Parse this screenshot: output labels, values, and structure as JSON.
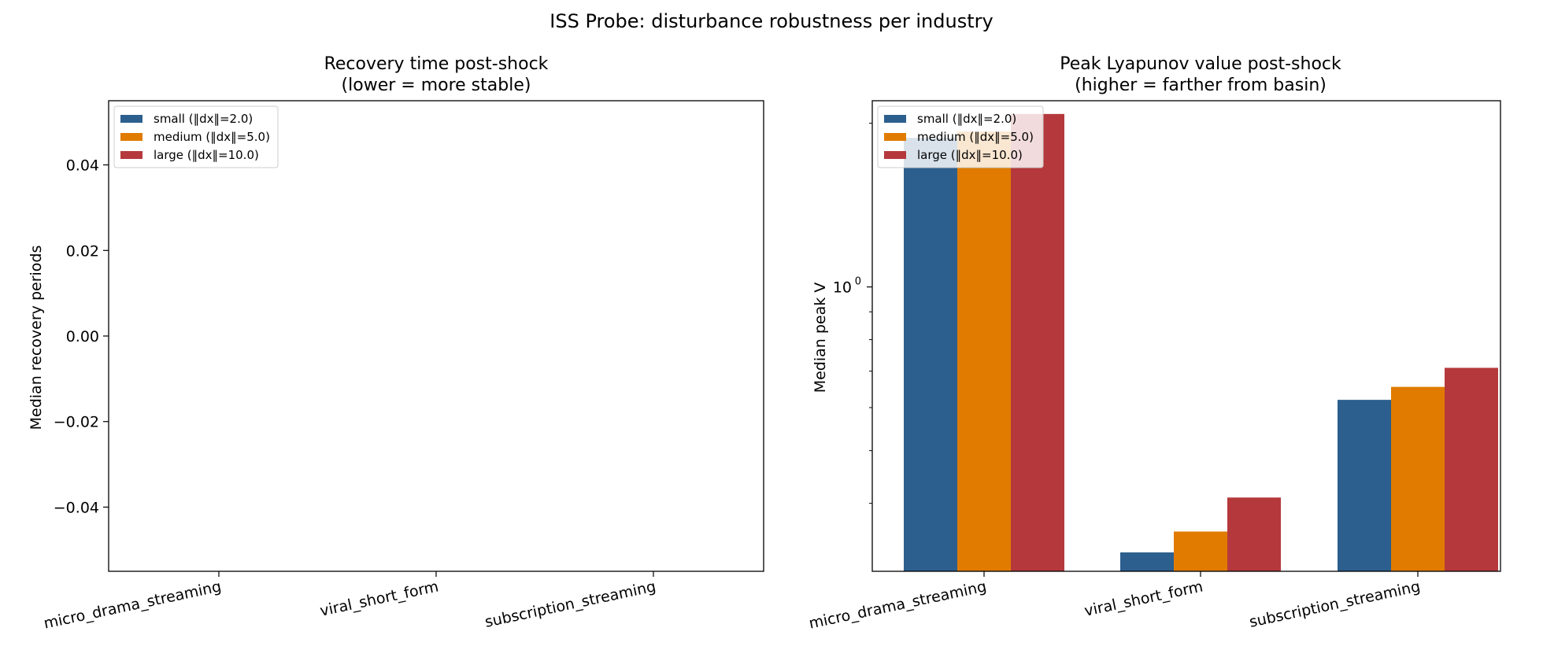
{
  "figure": {
    "title": "ISS Probe: disturbance robustness per industry"
  },
  "chart_data": [
    {
      "type": "bar",
      "title_line1": "Recovery time post-shock",
      "title_line2": "(lower = more stable)",
      "xlabel": "",
      "ylabel": "Median recovery periods",
      "categories": [
        "micro_drama_streaming",
        "viral_short_form",
        "subscription_streaming"
      ],
      "ylim": [
        -0.055,
        0.055
      ],
      "yscale": "linear",
      "yticks": [
        -0.04,
        -0.02,
        0.0,
        0.02,
        0.04
      ],
      "ytick_labels": [
        "−0.04",
        "−0.02",
        "0.00",
        "0.02",
        "0.04"
      ],
      "legend_position": "upper-left",
      "grid": false,
      "series": [
        {
          "name": "small (‖dx‖=2.0)",
          "color": "#2c5f8e",
          "values": [
            0,
            0,
            0
          ]
        },
        {
          "name": "medium (‖dx‖=5.0)",
          "color": "#e07b00",
          "values": [
            0,
            0,
            0
          ]
        },
        {
          "name": "large (‖dx‖=10.0)",
          "color": "#b5393c",
          "values": [
            0,
            0,
            0
          ]
        }
      ]
    },
    {
      "type": "bar",
      "title_line1": "Peak Lyapunov value post-shock",
      "title_line2": "(higher = farther from basin)",
      "xlabel": "",
      "ylabel": "Median peak V",
      "categories": [
        "micro_drama_streaming",
        "viral_short_form",
        "subscription_streaming"
      ],
      "yscale": "log",
      "ylim": [
        0.3,
        2.2
      ],
      "ytick_labels": [
        {
          "value": 1.0,
          "base": "10",
          "exp": "0"
        }
      ],
      "minor_ticks": [
        0.4,
        0.5,
        0.6,
        0.7,
        0.8,
        0.9,
        2.0
      ],
      "legend_position": "upper-left",
      "grid": false,
      "series": [
        {
          "name": "small (‖dx‖=2.0)",
          "color": "#2c5f8e",
          "values": [
            1.88,
            0.325,
            0.62
          ]
        },
        {
          "name": "medium (‖dx‖=5.0)",
          "color": "#e07b00",
          "values": [
            1.93,
            0.355,
            0.655
          ]
        },
        {
          "name": "large (‖dx‖=10.0)",
          "color": "#b5393c",
          "values": [
            2.08,
            0.41,
            0.71
          ]
        }
      ]
    }
  ]
}
